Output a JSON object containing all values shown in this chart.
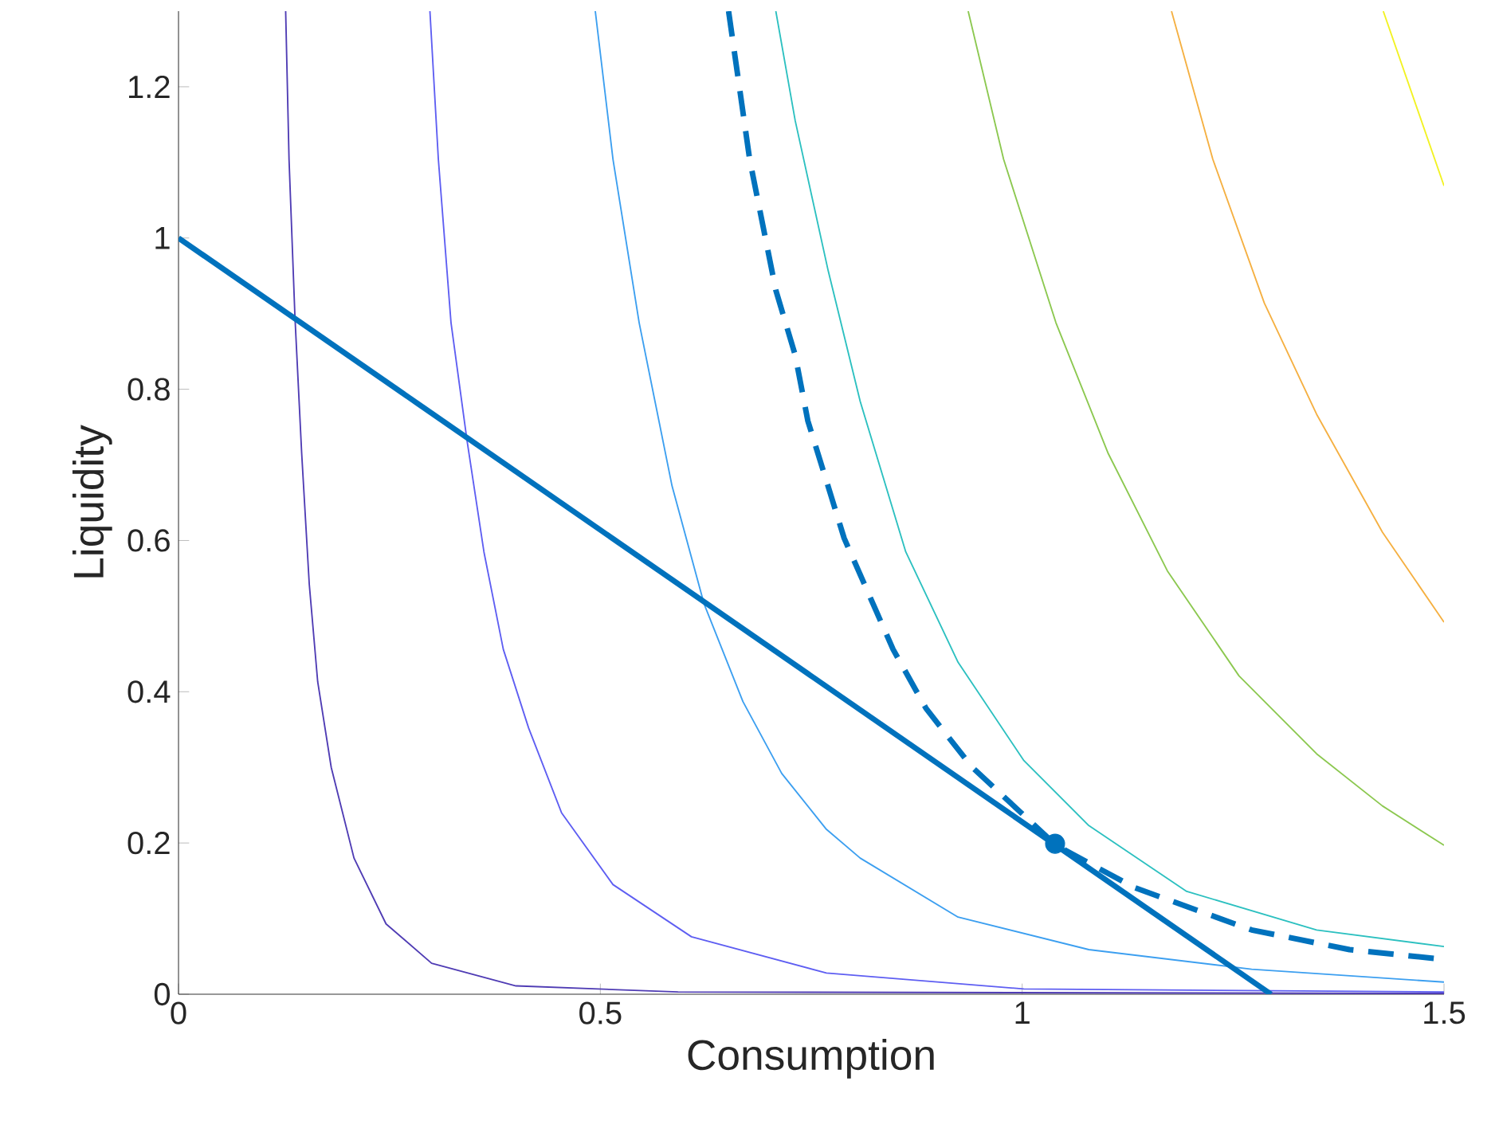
{
  "chart_data": {
    "type": "line",
    "xlabel": "Consumption",
    "ylabel": "Liquidity",
    "xlim": [
      0,
      1.5
    ],
    "ylim": [
      0,
      1.3
    ],
    "xticks": [
      0,
      0.5,
      1,
      1.5
    ],
    "yticks": [
      0,
      0.2,
      0.4,
      0.6,
      0.8,
      1,
      1.2
    ],
    "series": [
      {
        "color": "#4f3cb4",
        "x": [
          0.127,
          0.131,
          0.138,
          0.146,
          0.155,
          0.165,
          0.181,
          0.208,
          0.246,
          0.3,
          0.4,
          0.592,
          1.5
        ],
        "values": [
          1.3,
          1.104,
          0.896,
          0.715,
          0.542,
          0.413,
          0.3,
          0.18,
          0.093,
          0.041,
          0.011,
          0.003,
          0.001
        ]
      },
      {
        "color": "#5e5ef2",
        "x": [
          0.298,
          0.308,
          0.323,
          0.342,
          0.362,
          0.385,
          0.415,
          0.454,
          0.515,
          0.608,
          0.768,
          1.002,
          1.5
        ],
        "values": [
          1.3,
          1.104,
          0.888,
          0.732,
          0.585,
          0.456,
          0.352,
          0.24,
          0.145,
          0.076,
          0.028,
          0.007,
          0.003
        ]
      },
      {
        "color": "#3c9ff0",
        "x": [
          0.494,
          0.515,
          0.546,
          0.585,
          0.623,
          0.669,
          0.715,
          0.768,
          0.808,
          0.924,
          1.079,
          1.272,
          1.5
        ],
        "values": [
          1.3,
          1.104,
          0.888,
          0.672,
          0.516,
          0.387,
          0.292,
          0.218,
          0.18,
          0.102,
          0.059,
          0.033,
          0.016
        ]
      },
      {
        "color": "#2cc0c0",
        "x": [
          0.708,
          0.731,
          0.77,
          0.808,
          0.862,
          0.924,
          1.002,
          1.079,
          1.195,
          1.349,
          1.5
        ],
        "values": [
          1.3,
          1.155,
          0.957,
          0.784,
          0.585,
          0.439,
          0.309,
          0.223,
          0.136,
          0.085,
          0.063
        ]
      },
      {
        "color": "#8cc850",
        "x": [
          0.936,
          0.978,
          1.04,
          1.102,
          1.172,
          1.257,
          1.349,
          1.427,
          1.5
        ],
        "values": [
          1.3,
          1.104,
          0.888,
          0.715,
          0.56,
          0.421,
          0.318,
          0.249,
          0.197
        ]
      },
      {
        "color": "#f5b042",
        "x": [
          1.177,
          1.226,
          1.287,
          1.349,
          1.427,
          1.5
        ],
        "values": [
          1.3,
          1.104,
          0.914,
          0.767,
          0.611,
          0.492
        ]
      },
      {
        "color": "#f2f222",
        "x": [
          1.428,
          1.5
        ],
        "values": [
          1.3,
          1.069
        ]
      },
      {
        "color": "#0072bd",
        "line_style": "dashed",
        "x": [
          0.652,
          0.677,
          0.708,
          0.731,
          0.746,
          0.789,
          0.847,
          0.886,
          0.94,
          1.04,
          1.133,
          1.272,
          1.388,
          1.5
        ],
        "values": [
          1.3,
          1.104,
          0.931,
          0.845,
          0.758,
          0.603,
          0.456,
          0.378,
          0.301,
          0.197,
          0.141,
          0.085,
          0.059,
          0.046
        ]
      },
      {
        "color": "#0072bd",
        "line_style": "solid",
        "x": [
          0,
          1.295
        ],
        "values": [
          1,
          0
        ]
      },
      {
        "type": "scatter",
        "marker": "circle",
        "color": "#0072bd",
        "x": [
          1.039
        ],
        "values": [
          0.199
        ]
      }
    ]
  }
}
